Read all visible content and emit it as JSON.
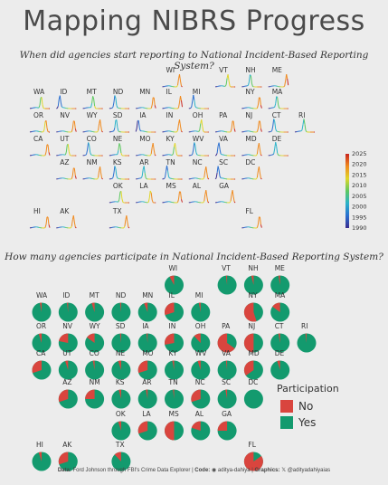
{
  "title": "Mapping NIBRS Progress",
  "subtitle1": "When did agencies start reporting to National Incident-Based Reporting System?",
  "subtitle2": "How many agencies participate in National Incident-Based Reporting System?",
  "caption": {
    "data_label": "Data:",
    "data_text": "Ford Johnson through FBI's Crime Data Explorer",
    "code_label": "Code:",
    "code_text": "aditya-dahiya",
    "graphics_label": "Graphics:",
    "graphics_text": "@adityadahiyaias",
    "sep": "|"
  },
  "colors": {
    "no": "#d9453e",
    "yes": "#139a6e",
    "background": "#ececec"
  },
  "chart_data": [
    {
      "type": "area",
      "description_type": "small-multiple density of year agencies started NIBRS reporting, per state tile",
      "colorbar": {
        "ticks": [
          2025,
          2020,
          2015,
          2010,
          2005,
          2000,
          1995,
          1990
        ],
        "range": [
          1990,
          2025
        ],
        "palette": [
          "#3a2d8f",
          "#2a6fd0",
          "#2bb3c9",
          "#5ec961",
          "#e0d62a",
          "#f08a1e",
          "#c8241f"
        ]
      },
      "states": [
        {
          "s": "WI",
          "col": 5,
          "row": 0,
          "peak": 2020
        },
        {
          "s": "VT",
          "col": 7,
          "row": 0,
          "peak": 2012
        },
        {
          "s": "NH",
          "col": 8,
          "row": 0,
          "peak": 2005
        },
        {
          "s": "ME",
          "col": 9,
          "row": 0,
          "peak": 2022
        },
        {
          "s": "WA",
          "col": 0,
          "row": 1,
          "peak": 2010
        },
        {
          "s": "ID",
          "col": 1,
          "row": 1,
          "peak": 1996
        },
        {
          "s": "MT",
          "col": 2,
          "row": 1,
          "peak": 2008
        },
        {
          "s": "ND",
          "col": 3,
          "row": 1,
          "peak": 2000
        },
        {
          "s": "MN",
          "col": 4,
          "row": 1,
          "peak": 2021
        },
        {
          "s": "IL",
          "col": 5,
          "row": 1,
          "peak": 2022
        },
        {
          "s": "MI",
          "col": 6,
          "row": 1,
          "peak": 1998
        },
        {
          "s": "NY",
          "col": 8,
          "row": 1,
          "peak": 2021
        },
        {
          "s": "MA",
          "col": 9,
          "row": 1,
          "peak": 2005
        },
        {
          "s": "OR",
          "col": 0,
          "row": 2,
          "peak": 2018
        },
        {
          "s": "NV",
          "col": 1,
          "row": 2,
          "peak": 2021
        },
        {
          "s": "WY",
          "col": 2,
          "row": 2,
          "peak": 2020
        },
        {
          "s": "SD",
          "col": 3,
          "row": 2,
          "peak": 2002
        },
        {
          "s": "IA",
          "col": 4,
          "row": 2,
          "peak": 1994
        },
        {
          "s": "IN",
          "col": 5,
          "row": 2,
          "peak": 2020
        },
        {
          "s": "OH",
          "col": 6,
          "row": 2,
          "peak": 2012
        },
        {
          "s": "PA",
          "col": 7,
          "row": 2,
          "peak": 2021
        },
        {
          "s": "NJ",
          "col": 8,
          "row": 2,
          "peak": 2021
        },
        {
          "s": "CT",
          "col": 9,
          "row": 2,
          "peak": 2000
        },
        {
          "s": "RI",
          "col": 10,
          "row": 2,
          "peak": 2006
        },
        {
          "s": "CA",
          "col": 0,
          "row": 3,
          "peak": 2021
        },
        {
          "s": "UT",
          "col": 1,
          "row": 3,
          "peak": 2010
        },
        {
          "s": "CO",
          "col": 2,
          "row": 3,
          "peak": 2000
        },
        {
          "s": "NE",
          "col": 3,
          "row": 3,
          "peak": 2008
        },
        {
          "s": "MO",
          "col": 4,
          "row": 3,
          "peak": 2020
        },
        {
          "s": "KY",
          "col": 5,
          "row": 3,
          "peak": 2012
        },
        {
          "s": "WV",
          "col": 6,
          "row": 3,
          "peak": 2000
        },
        {
          "s": "VA",
          "col": 7,
          "row": 3,
          "peak": 1996
        },
        {
          "s": "MD",
          "col": 8,
          "row": 3,
          "peak": 2020
        },
        {
          "s": "DE",
          "col": 9,
          "row": 3,
          "peak": 2003
        },
        {
          "s": "AZ",
          "col": 1,
          "row": 4,
          "peak": 2021
        },
        {
          "s": "NM",
          "col": 2,
          "row": 4,
          "peak": 2020
        },
        {
          "s": "KS",
          "col": 3,
          "row": 4,
          "peak": 2000
        },
        {
          "s": "AR",
          "col": 4,
          "row": 4,
          "peak": 2004
        },
        {
          "s": "TN",
          "col": 5,
          "row": 4,
          "peak": 1998
        },
        {
          "s": "NC",
          "col": 6,
          "row": 4,
          "peak": 2020
        },
        {
          "s": "SC",
          "col": 7,
          "row": 4,
          "peak": 1995
        },
        {
          "s": "DC",
          "col": 8,
          "row": 4,
          "peak": 2020
        },
        {
          "s": "OK",
          "col": 3,
          "row": 5,
          "peak": 2010
        },
        {
          "s": "LA",
          "col": 4,
          "row": 5,
          "peak": 2016
        },
        {
          "s": "MS",
          "col": 5,
          "row": 5,
          "peak": 2021
        },
        {
          "s": "AL",
          "col": 6,
          "row": 5,
          "peak": 2020
        },
        {
          "s": "GA",
          "col": 7,
          "row": 5,
          "peak": 2020
        },
        {
          "s": "HI",
          "col": 0,
          "row": 6,
          "peak": 2021
        },
        {
          "s": "AK",
          "col": 1,
          "row": 6,
          "peak": 2020
        },
        {
          "s": "TX",
          "col": 3,
          "row": 6,
          "peak": 2020
        },
        {
          "s": "FL",
          "col": 8,
          "row": 6,
          "peak": 2021
        }
      ]
    },
    {
      "type": "pie",
      "description_type": "per-state pie of agencies participating in NIBRS (No / Yes)",
      "legend_title": "Participation",
      "series": [
        {
          "name": "No"
        },
        {
          "name": "Yes"
        }
      ],
      "states": [
        {
          "s": "WI",
          "col": 5,
          "row": 0,
          "no": 0.08
        },
        {
          "s": "VT",
          "col": 7,
          "row": 0,
          "no": 0.02
        },
        {
          "s": "NH",
          "col": 8,
          "row": 0,
          "no": 0.04
        },
        {
          "s": "ME",
          "col": 9,
          "row": 0,
          "no": 0.03
        },
        {
          "s": "WA",
          "col": 0,
          "row": 1,
          "no": 0.03
        },
        {
          "s": "ID",
          "col": 1,
          "row": 1,
          "no": 0.02
        },
        {
          "s": "MT",
          "col": 2,
          "row": 1,
          "no": 0.05
        },
        {
          "s": "ND",
          "col": 3,
          "row": 1,
          "no": 0.02
        },
        {
          "s": "MN",
          "col": 4,
          "row": 1,
          "no": 0.06
        },
        {
          "s": "IL",
          "col": 5,
          "row": 1,
          "no": 0.3
        },
        {
          "s": "MI",
          "col": 6,
          "row": 1,
          "no": 0.03
        },
        {
          "s": "NY",
          "col": 8,
          "row": 1,
          "no": 0.55
        },
        {
          "s": "MA",
          "col": 9,
          "row": 1,
          "no": 0.15
        },
        {
          "s": "OR",
          "col": 0,
          "row": 2,
          "no": 0.05
        },
        {
          "s": "NV",
          "col": 1,
          "row": 2,
          "no": 0.22
        },
        {
          "s": "WY",
          "col": 2,
          "row": 2,
          "no": 0.15
        },
        {
          "s": "SD",
          "col": 3,
          "row": 2,
          "no": 0.02
        },
        {
          "s": "IA",
          "col": 4,
          "row": 2,
          "no": 0.02
        },
        {
          "s": "IN",
          "col": 5,
          "row": 2,
          "no": 0.28
        },
        {
          "s": "OH",
          "col": 6,
          "row": 2,
          "no": 0.12
        },
        {
          "s": "PA",
          "col": 7,
          "row": 2,
          "no": 0.65
        },
        {
          "s": "NJ",
          "col": 8,
          "row": 2,
          "no": 0.5
        },
        {
          "s": "CT",
          "col": 9,
          "row": 2,
          "no": 0.03
        },
        {
          "s": "RI",
          "col": 10,
          "row": 2,
          "no": 0.02
        },
        {
          "s": "CA",
          "col": 0,
          "row": 3,
          "no": 0.3
        },
        {
          "s": "UT",
          "col": 1,
          "row": 3,
          "no": 0.05
        },
        {
          "s": "CO",
          "col": 2,
          "row": 3,
          "no": 0.03
        },
        {
          "s": "NE",
          "col": 3,
          "row": 3,
          "no": 0.05
        },
        {
          "s": "MO",
          "col": 4,
          "row": 3,
          "no": 0.3
        },
        {
          "s": "KY",
          "col": 5,
          "row": 3,
          "no": 0.03
        },
        {
          "s": "WV",
          "col": 6,
          "row": 3,
          "no": 0.05
        },
        {
          "s": "VA",
          "col": 7,
          "row": 3,
          "no": 0.02
        },
        {
          "s": "MD",
          "col": 8,
          "row": 3,
          "no": 0.35
        },
        {
          "s": "DE",
          "col": 9,
          "row": 3,
          "no": 0.05
        },
        {
          "s": "AZ",
          "col": 1,
          "row": 4,
          "no": 0.3
        },
        {
          "s": "NM",
          "col": 2,
          "row": 4,
          "no": 0.25
        },
        {
          "s": "KS",
          "col": 3,
          "row": 4,
          "no": 0.04
        },
        {
          "s": "AR",
          "col": 4,
          "row": 4,
          "no": 0.03
        },
        {
          "s": "TN",
          "col": 5,
          "row": 4,
          "no": 0.02
        },
        {
          "s": "NC",
          "col": 6,
          "row": 4,
          "no": 0.3
        },
        {
          "s": "SC",
          "col": 7,
          "row": 4,
          "no": 0.03
        },
        {
          "s": "DC",
          "col": 8,
          "row": 4,
          "no": 0.0
        },
        {
          "s": "OK",
          "col": 3,
          "row": 5,
          "no": 0.05
        },
        {
          "s": "LA",
          "col": 4,
          "row": 5,
          "no": 0.3
        },
        {
          "s": "MS",
          "col": 5,
          "row": 5,
          "no": 0.5
        },
        {
          "s": "AL",
          "col": 6,
          "row": 5,
          "no": 0.2
        },
        {
          "s": "GA",
          "col": 7,
          "row": 5,
          "no": 0.25
        },
        {
          "s": "HI",
          "col": 0,
          "row": 6,
          "no": 0.05
        },
        {
          "s": "AK",
          "col": 1,
          "row": 6,
          "no": 0.3
        },
        {
          "s": "TX",
          "col": 3,
          "row": 6,
          "no": 0.12
        },
        {
          "s": "FL",
          "col": 8,
          "row": 6,
          "no": 0.85
        }
      ]
    }
  ]
}
